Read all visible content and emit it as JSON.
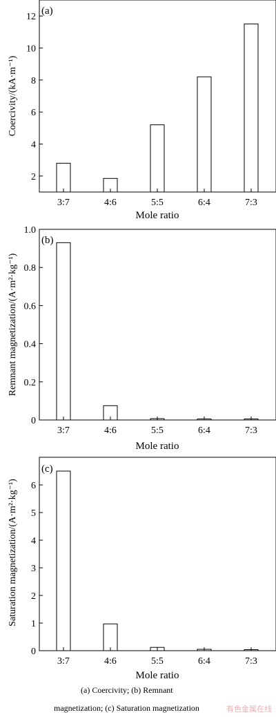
{
  "chart_data": [
    {
      "type": "bar",
      "panel_label": "(a)",
      "categories": [
        "3:7",
        "4:6",
        "5:5",
        "6:4",
        "7:3"
      ],
      "values": [
        2.8,
        1.85,
        5.2,
        8.2,
        11.5
      ],
      "xlabel": "Mole ratio",
      "ylabel": "Coercivity/(kA·m⁻¹)",
      "ylim": [
        1,
        13
      ],
      "yticks": [
        2,
        4,
        6,
        8,
        10,
        12
      ],
      "ytick_labels": [
        "2",
        "4",
        "6",
        "8",
        "10",
        "12"
      ],
      "grid": false
    },
    {
      "type": "bar",
      "panel_label": "(b)",
      "categories": [
        "3:7",
        "4:6",
        "5:5",
        "6:4",
        "7:3"
      ],
      "values": [
        0.93,
        0.075,
        0.007,
        0.004,
        0.002
      ],
      "xlabel": "Mole ratio",
      "ylabel": "Remnant magnetization/(A·m²·kg⁻¹)",
      "ylim": [
        0,
        1.0
      ],
      "yticks": [
        0,
        0.2,
        0.4,
        0.6,
        0.8,
        1.0
      ],
      "ytick_labels": [
        "0",
        "0.2",
        "0.4",
        "0.6",
        "0.8",
        "1.0"
      ],
      "grid": false
    },
    {
      "type": "bar",
      "panel_label": "(c)",
      "categories": [
        "3:7",
        "4:6",
        "5:5",
        "6:4",
        "7:3"
      ],
      "values": [
        6.5,
        0.97,
        0.12,
        0.05,
        0.01
      ],
      "xlabel": "Mole ratio",
      "ylabel": "Saturation magnetization/(A·m²·kg⁻¹)",
      "ylim": [
        0,
        7
      ],
      "yticks": [
        0,
        1,
        2,
        3,
        4,
        5,
        6
      ],
      "ytick_labels": [
        "0",
        "1",
        "2",
        "3",
        "4",
        "5",
        "6"
      ],
      "grid": false
    }
  ],
  "caption": {
    "line1": "(a)   Coercivity;   (b)   Remnant",
    "line2": "magnetization; (c) Saturation magnetization"
  },
  "watermark": "有色金属在线"
}
